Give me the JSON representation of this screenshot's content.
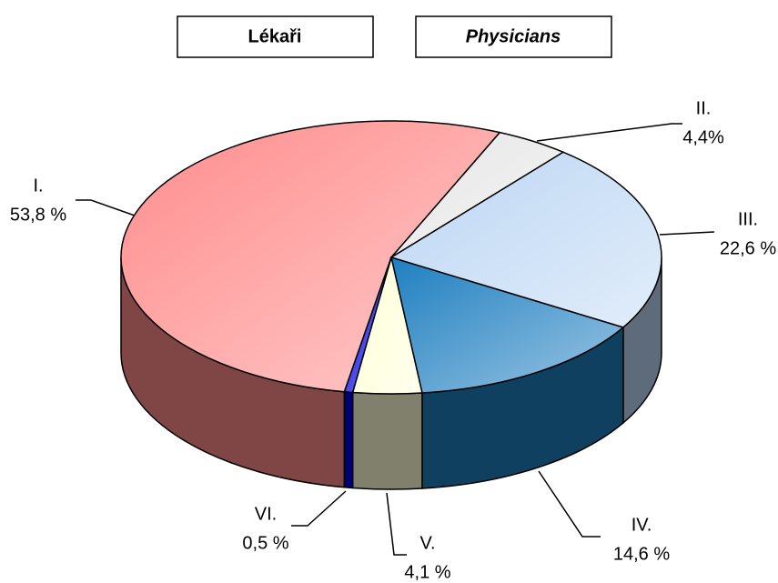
{
  "chart_data": {
    "type": "pie",
    "title": "Lékaři",
    "subtitle": "Physicians",
    "categories": [
      "I.",
      "II.",
      "III.",
      "IV.",
      "V.",
      "VI."
    ],
    "values": [
      53.8,
      4.4,
      22.6,
      14.6,
      4.1,
      0.5
    ],
    "value_labels": [
      "53,8 %",
      "4,4%",
      "22,6 %",
      "14,6 %",
      "4,1 %",
      "0,5 %"
    ],
    "colors": [
      "#ff8c8c",
      "#e6e6e6",
      "#bcd6f4",
      "#1f7fc0",
      "#ffffd8",
      "#0000e6"
    ]
  }
}
